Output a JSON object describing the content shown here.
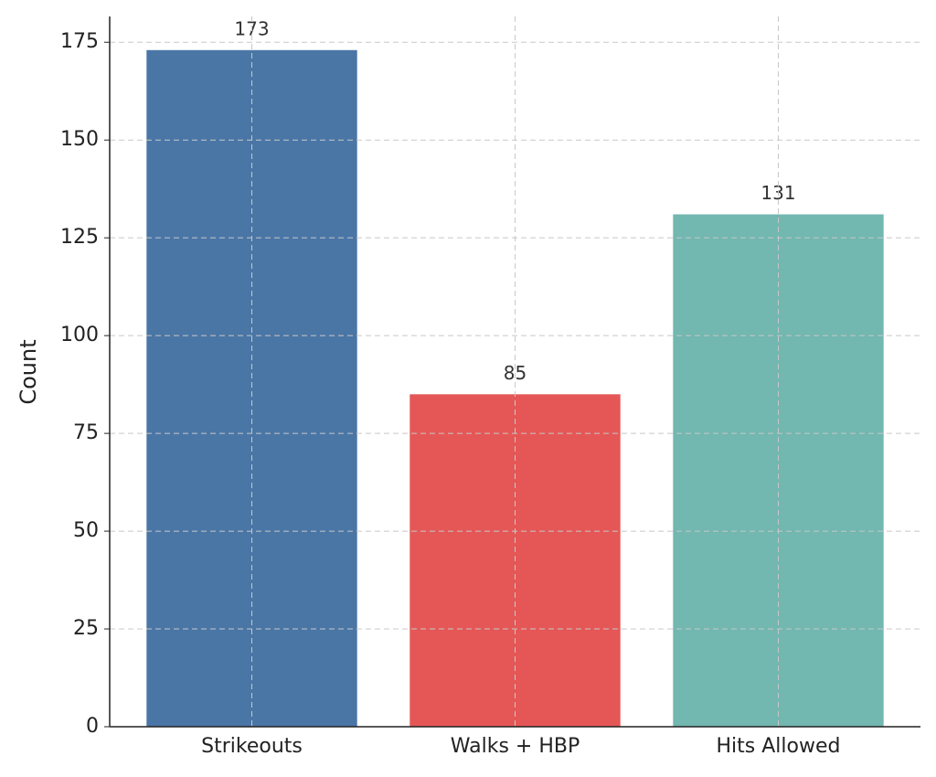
{
  "chart_data": {
    "type": "bar",
    "ylabel": "Count",
    "categories": [
      "Strikeouts",
      "Walks + HBP",
      "Hits Allowed"
    ],
    "values": [
      173,
      85,
      131
    ],
    "colors": [
      "#4a76a6",
      "#e45756",
      "#72b7b0"
    ],
    "ylim": [
      0,
      181.6
    ],
    "yticks": [
      0,
      25,
      50,
      75,
      100,
      125,
      150,
      175
    ],
    "grid": true
  }
}
